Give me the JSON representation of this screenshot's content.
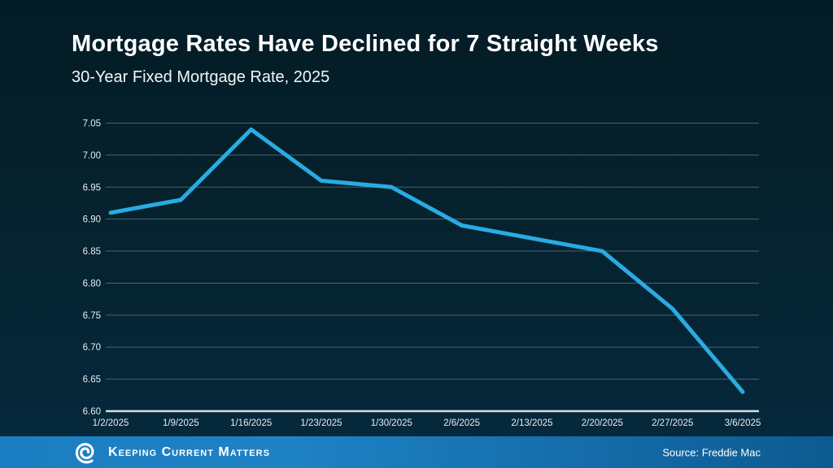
{
  "header": {
    "title": "Mortgage Rates Have Declined for 7 Straight Weeks",
    "subtitle": "30-Year Fixed Mortgage Rate, 2025"
  },
  "chart_data": {
    "type": "line",
    "title": "30-Year Fixed Mortgage Rate, 2025",
    "categories": [
      "1/2/2025",
      "1/9/2025",
      "1/16/2025",
      "1/23/2025",
      "1/30/2025",
      "2/6/2025",
      "2/13/2025",
      "2/20/2025",
      "2/27/2025",
      "3/6/2025"
    ],
    "series": [
      {
        "name": "30-Year Fixed Mortgage Rate",
        "values": [
          6.91,
          6.93,
          7.04,
          6.96,
          6.95,
          6.89,
          6.87,
          6.85,
          6.76,
          6.63
        ]
      }
    ],
    "xlabel": "",
    "ylabel": "",
    "ylim": [
      6.6,
      7.05
    ],
    "ytick_step": 0.05,
    "ytick_labels": [
      "7.05",
      "7.00",
      "6.95",
      "6.90",
      "6.85",
      "6.80",
      "6.75",
      "6.70",
      "6.65",
      "6.60"
    ],
    "grid": true,
    "legend_position": "none",
    "line_color": "#29abe2"
  },
  "footer": {
    "brand": "Keeping Current Matters",
    "logo": "kcm-spiral-icon",
    "source": "Source: Freddie Mac"
  },
  "colors": {
    "background_top": "#041c26",
    "background_bottom": "#05293d",
    "accent_line": "#29abe2",
    "footer_bar_left": "#1c7ec2",
    "footer_bar_right": "#0d5a91",
    "gridline": "#8a98a1",
    "axis_baseline": "#d7dde1",
    "text": "#ffffff"
  }
}
